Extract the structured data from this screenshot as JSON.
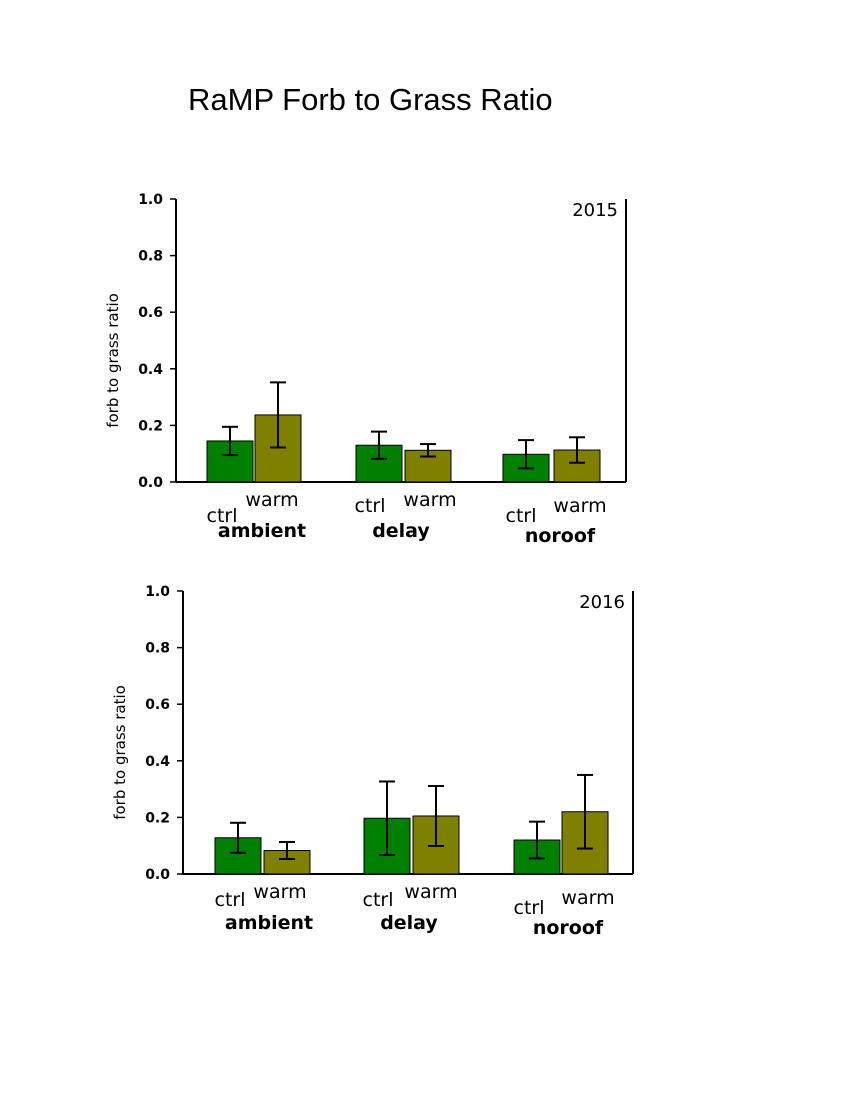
{
  "title": "RaMP Forb to Grass Ratio",
  "colors": {
    "ctrl": "#008000",
    "warm": "#808000",
    "axis": "#000000"
  },
  "chart_data": [
    {
      "type": "bar",
      "year_label": "2015",
      "ylabel": "forb to grass ratio",
      "ylim": [
        0,
        1.0
      ],
      "yticks": [
        "0.0",
        "0.2",
        "0.4",
        "0.6",
        "0.8",
        "1.0"
      ],
      "groups": [
        "ambient",
        "delay",
        "noroof"
      ],
      "series": [
        {
          "name": "ctrl",
          "values": [
            0.145,
            0.13,
            0.098
          ],
          "errors": [
            0.05,
            0.048,
            0.05
          ]
        },
        {
          "name": "warm",
          "values": [
            0.237,
            0.112,
            0.113
          ],
          "errors": [
            0.115,
            0.022,
            0.045
          ]
        }
      ]
    },
    {
      "type": "bar",
      "year_label": "2016",
      "ylabel": "forb to grass ratio",
      "ylim": [
        0,
        1.0
      ],
      "yticks": [
        "0.0",
        "0.2",
        "0.4",
        "0.6",
        "0.8",
        "1.0"
      ],
      "groups": [
        "ambient",
        "delay",
        "noroof"
      ],
      "series": [
        {
          "name": "ctrl",
          "values": [
            0.128,
            0.197,
            0.12
          ],
          "errors": [
            0.053,
            0.13,
            0.065
          ]
        },
        {
          "name": "warm",
          "values": [
            0.083,
            0.205,
            0.22
          ],
          "errors": [
            0.03,
            0.106,
            0.13
          ]
        }
      ]
    }
  ]
}
